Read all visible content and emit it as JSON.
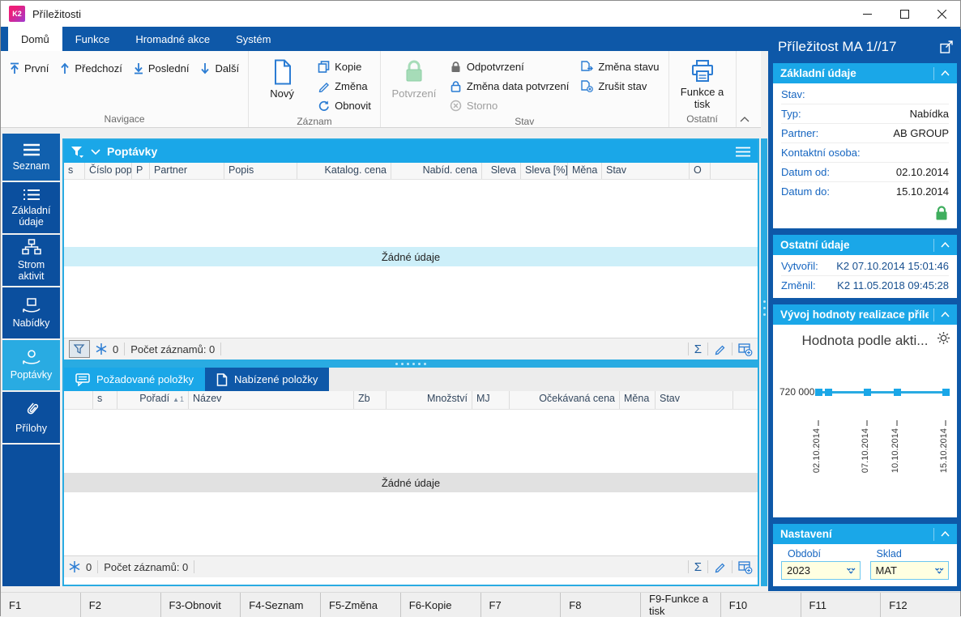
{
  "window": {
    "title": "Příležitosti",
    "logo_text": "K2"
  },
  "ribbon": {
    "tabs": [
      "Domů",
      "Funkce",
      "Hromadné akce",
      "Systém"
    ],
    "nav": {
      "first": "První",
      "last": "Poslední",
      "prev": "Předchozí",
      "next": "Další",
      "group": "Navigace"
    },
    "record": {
      "new": "Nový",
      "copy": "Kopie",
      "change": "Změna",
      "refresh": "Obnovit",
      "group": "Záznam"
    },
    "state": {
      "confirm": "Potvrzení",
      "unconfirm": "Odpotvrzení",
      "change_date": "Změna data potvrzení",
      "cancel": "Storno",
      "change_state": "Změna stavu",
      "clear_state": "Zrušit stav",
      "group": "Stav"
    },
    "other": {
      "functions_print": "Funkce a tisk",
      "group": "Ostatní"
    }
  },
  "sidebar": {
    "items": [
      "Seznam",
      "Základní údaje",
      "Strom aktivit",
      "Nabídky",
      "Poptávky",
      "Přílohy"
    ]
  },
  "main": {
    "panel_title": "Poptávky",
    "columns": [
      "s",
      "Číslo pop",
      "P",
      "Partner",
      "Popis",
      "Katalog. cena",
      "Nabíd. cena",
      "Sleva",
      "Sleva [%]",
      "Měna",
      "Stav",
      "O"
    ],
    "empty_text": "Žádné údaje",
    "status": {
      "pinned": "0",
      "records": "Počet záznamů: 0",
      "sigma": "Σ"
    },
    "tabs": [
      "Požadované položky",
      "Nabízené položky"
    ],
    "columns2": [
      "s",
      "Pořadí",
      "Název",
      "Zb",
      "Množství",
      "MJ",
      "Očekávaná cena",
      "Měna",
      "Stav"
    ],
    "sort_arrow": "▲",
    "sort_number": "1",
    "status2": {
      "pinned": "0",
      "records": "Počet záznamů: 0",
      "sigma": "Σ"
    }
  },
  "right": {
    "title": "Příležitost MA 1//17",
    "basic": {
      "title": "Základní údaje",
      "rows": [
        {
          "label": "Stav:",
          "value": ""
        },
        {
          "label": "Typ:",
          "value": "Nabídka"
        },
        {
          "label": "Partner:",
          "value": "AB GROUP"
        },
        {
          "label": "Kontaktní osoba:",
          "value": ""
        },
        {
          "label": "Datum od:",
          "value": "02.10.2014"
        },
        {
          "label": "Datum do:",
          "value": "15.10.2014"
        }
      ]
    },
    "other": {
      "title": "Ostatní údaje",
      "rows": [
        {
          "label": "Vytvořil:",
          "value": "K2 07.10.2014 15:01:46"
        },
        {
          "label": "Změnil:",
          "value": "K2 11.05.2018 09:45:28"
        }
      ]
    },
    "chart_section": {
      "title": "Vývoj hodnoty realizace příle..."
    },
    "settings": {
      "title": "Nastavení",
      "fields": [
        {
          "label": "Období",
          "value": "2023"
        },
        {
          "label": "Sklad",
          "value": "MAT"
        }
      ]
    }
  },
  "chart_data": {
    "type": "line",
    "title": "Hodnota podle akti...",
    "x_ticks": [
      "02.10.2014",
      "07.10.2014",
      "10.10.2014",
      "15.10.2014"
    ],
    "x_tick_days": [
      0,
      5,
      8,
      13
    ],
    "points_days": [
      0,
      1,
      5,
      8,
      13
    ],
    "values": [
      720000,
      720000,
      720000,
      720000,
      720000
    ],
    "x_max_days": 13,
    "y_tick_label": "720 000",
    "ylabel": "",
    "xlabel": "",
    "line_color": "#29abe2",
    "grid": false,
    "legend": false
  },
  "fkeys": [
    "F1",
    "F2",
    "F3-Obnovit",
    "F4-Seznam",
    "F5-Změna",
    "F6-Kopie",
    "F7",
    "F8",
    "F9-Funkce a tisk",
    "F10",
    "F11",
    "F12"
  ],
  "colors": {
    "accent_blue": "#0e58a8",
    "cyan_header": "#1aa7e8",
    "active_item": "#29abe2",
    "empty_row_cyan": "#cdeff9",
    "field_bg": "#ffffe1",
    "green_lock": "#3fae5e"
  }
}
